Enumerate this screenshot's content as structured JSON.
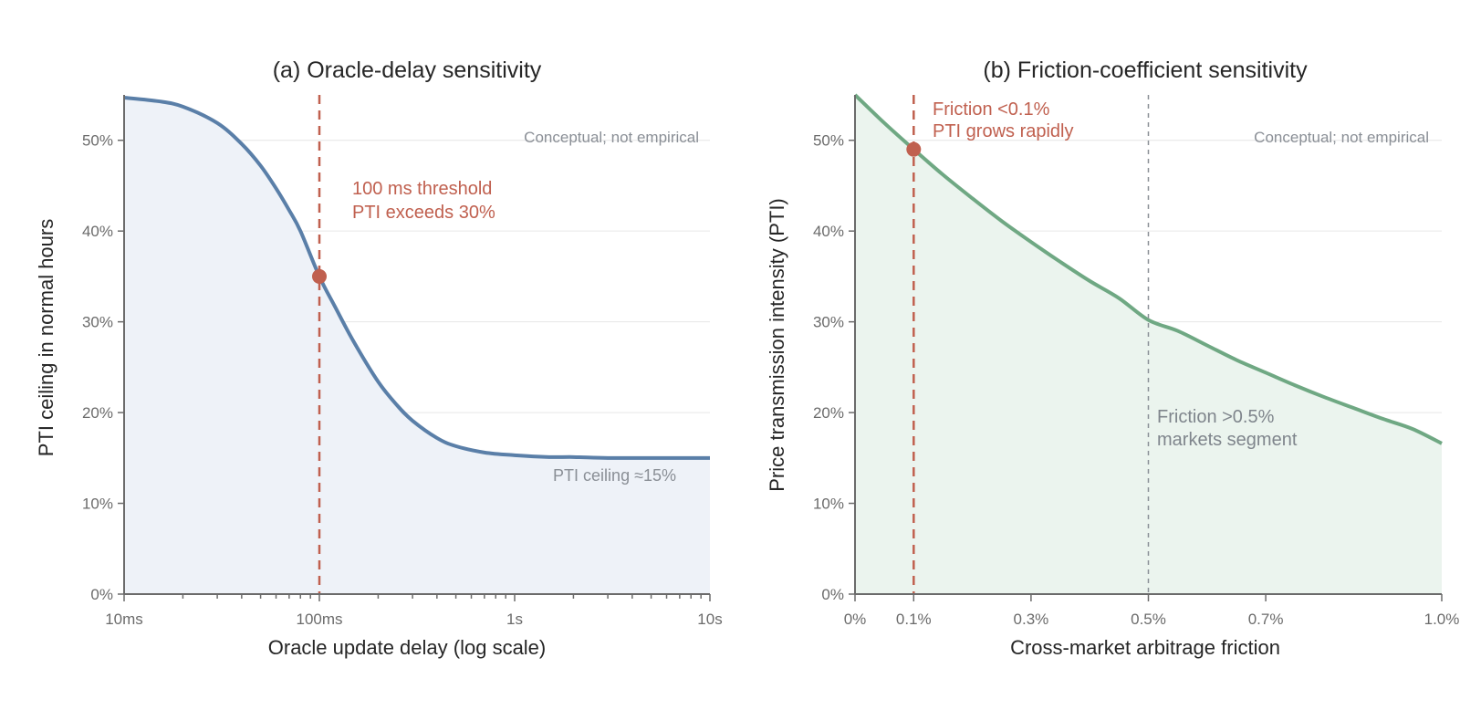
{
  "chart_data": [
    {
      "type": "area",
      "title": "(a) Oracle-delay sensitivity",
      "xlabel": "Oracle update delay (log scale)",
      "ylabel": "PTI ceiling in normal hours",
      "x_scale": "log",
      "x_unit": "s",
      "xlim": [
        0.01,
        10
      ],
      "ylim": [
        0,
        55
      ],
      "x_ticks": [
        0.01,
        0.1,
        1,
        10
      ],
      "x_tick_labels": [
        "10ms",
        "100ms",
        "1s",
        "10s"
      ],
      "y_ticks": [
        0,
        10,
        20,
        30,
        40,
        50
      ],
      "y_tick_labels": [
        "0%",
        "10%",
        "20%",
        "30%",
        "40%",
        "50%"
      ],
      "grid": "y",
      "series": [
        {
          "x": [
            0.01,
            0.015,
            0.02,
            0.03,
            0.04,
            0.05,
            0.06,
            0.07,
            0.08,
            0.1,
            0.12,
            0.15,
            0.2,
            0.25,
            0.3,
            0.4,
            0.5,
            0.7,
            1,
            1.5,
            2,
            3,
            5,
            7,
            10
          ],
          "values": [
            54.7,
            54.3,
            53.7,
            51.9,
            49.6,
            47.2,
            44.7,
            42.3,
            40.0,
            35.0,
            31.7,
            27.8,
            23.4,
            20.8,
            19.1,
            17.2,
            16.3,
            15.6,
            15.3,
            15.1,
            15.1,
            15.0,
            15.0,
            15.0,
            15.0
          ],
          "color": "#5a7fa8",
          "fill": "#eef2f8"
        }
      ],
      "threshold_x": 0.1,
      "marker": {
        "x": 0.1,
        "y": 35
      },
      "annotations": {
        "threshold_line1": "100 ms threshold",
        "threshold_line2": "PTI exceeds 30%",
        "floor_label": "PTI ceiling ≈15%",
        "note": "Conceptual; not empirical"
      }
    },
    {
      "type": "area",
      "title": "(b) Friction-coefficient sensitivity",
      "xlabel": "Cross-market arbitrage friction",
      "ylabel": "Price transmission intensity (PTI)",
      "xlim": [
        0,
        1.0
      ],
      "ylim": [
        0,
        55
      ],
      "x_ticks": [
        0,
        0.1,
        0.3,
        0.5,
        0.7,
        1.0
      ],
      "x_tick_labels": [
        "0%",
        "0.1%",
        "0.3%",
        "0.5%",
        "0.7%",
        "1.0%"
      ],
      "y_ticks": [
        0,
        10,
        20,
        30,
        40,
        50
      ],
      "y_tick_labels": [
        "0%",
        "10%",
        "20%",
        "30%",
        "40%",
        "50%"
      ],
      "grid": "y",
      "series": [
        {
          "x": [
            0,
            0.05,
            0.1,
            0.15,
            0.2,
            0.25,
            0.3,
            0.35,
            0.4,
            0.45,
            0.5,
            0.55,
            0.6,
            0.65,
            0.7,
            0.75,
            0.8,
            0.85,
            0.9,
            0.95,
            1.0
          ],
          "values": [
            55.0,
            51.9,
            49.0,
            46.2,
            43.6,
            41.1,
            38.8,
            36.6,
            34.5,
            32.6,
            30.2,
            29.0,
            27.4,
            25.8,
            24.4,
            23.0,
            21.7,
            20.5,
            19.3,
            18.2,
            16.6
          ],
          "color": "#6fa883",
          "fill": "#ebf4ee"
        }
      ],
      "threshold_x": 0.1,
      "segment_x": 0.5,
      "marker": {
        "x": 0.1,
        "y": 49
      },
      "annotations": {
        "friction_line1": "Friction <0.1%",
        "friction_line2": "PTI grows rapidly",
        "segment_line1": "Friction >0.5%",
        "segment_line2": "markets segment",
        "note": "Conceptual; not empirical"
      }
    }
  ]
}
